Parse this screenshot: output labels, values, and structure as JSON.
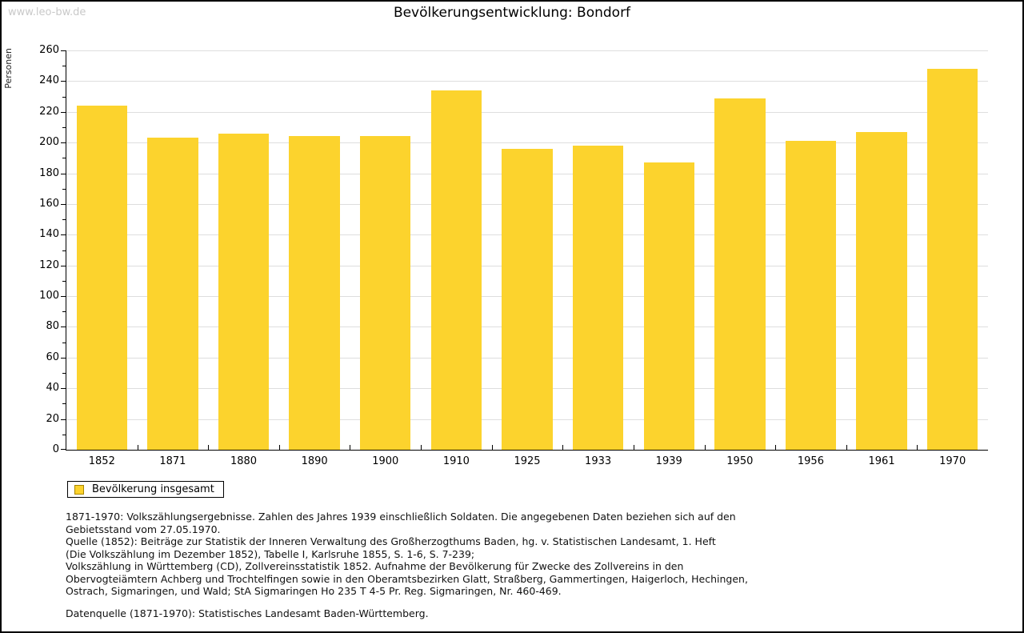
{
  "page": {
    "watermark": "www.leo-bw.de",
    "title": "Bevölkerungsentwicklung: Bondorf"
  },
  "chart_data": {
    "type": "bar",
    "title": "Bevölkerungsentwicklung: Bondorf",
    "xlabel": "",
    "ylabel": "Personen",
    "categories": [
      "1852",
      "1871",
      "1880",
      "1890",
      "1900",
      "1910",
      "1925",
      "1933",
      "1939",
      "1950",
      "1956",
      "1961",
      "1970"
    ],
    "series": [
      {
        "name": "Bevölkerung insgesamt",
        "color": "#FCD32D",
        "values": [
          224,
          203,
          206,
          204,
          204,
          234,
          196,
          198,
          187,
          229,
          201,
          207,
          248
        ]
      }
    ],
    "ylim": [
      0,
      260
    ],
    "ytick_step": 20,
    "minor_tick_step": 10,
    "grid": true,
    "legend_position": "bottom-left"
  },
  "legend": {
    "label": "Bevölkerung insgesamt"
  },
  "footer": {
    "lines": [
      "1871-1970: Volkszählungsergebnisse. Zahlen des Jahres 1939 einschließlich Soldaten. Die angegebenen Daten beziehen sich auf den",
      "Gebietsstand vom 27.05.1970.",
      "Quelle (1852): Beiträge zur Statistik der Inneren Verwaltung des Großherzogthums Baden, hg. v. Statistischen Landesamt, 1. Heft",
      "(Die Volkszählung im Dezember 1852), Tabelle I, Karlsruhe 1855, S. 1-6, S. 7-239;",
      "Volkszählung in Württemberg (CD), Zollvereinsstatistik 1852. Aufnahme der Bevölkerung für Zwecke des Zollvereins in den",
      "Obervogteiämtern Achberg und Trochtelfingen sowie in den Oberamtsbezirken Glatt, Straßberg, Gammertingen, Haigerloch, Hechingen,",
      "Ostrach, Sigmaringen, und Wald; StA Sigmaringen Ho 235 T 4-5 Pr. Reg. Sigmaringen, Nr. 460-469."
    ],
    "datasource": "Datenquelle (1871-1970): Statistisches Landesamt Baden-Württemberg."
  },
  "colors": {
    "bar_fill": "#FCD32D",
    "swatch_border": "#A98600",
    "gridline": "#DEDEDE",
    "watermark": "#C9C9C9"
  }
}
